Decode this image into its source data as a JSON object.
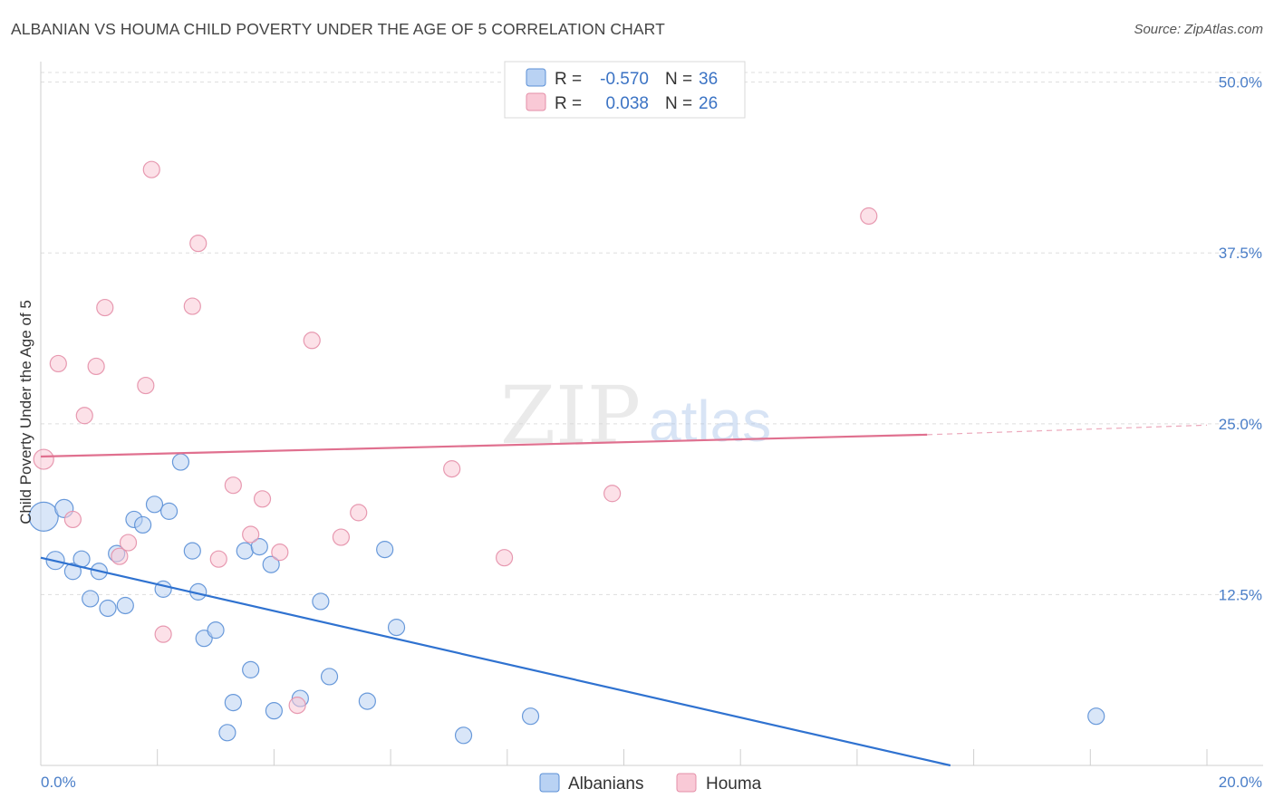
{
  "header": {
    "title": "ALBANIAN VS HOUMA CHILD POVERTY UNDER THE AGE OF 5 CORRELATION CHART",
    "source": "Source: ZipAtlas.com"
  },
  "watermark": {
    "part1": "ZIP",
    "part2": "atlas"
  },
  "colors": {
    "albanians_fill": "#b9d2f3",
    "albanians_stroke": "#5a8fd6",
    "albanians_line": "#2f72d0",
    "houma_fill": "#f9c9d6",
    "houma_stroke": "#e48fa8",
    "houma_line": "#e0708f",
    "axis_label": "#4a7ec8",
    "grid": "#dddddd"
  },
  "legend": {
    "rows": [
      {
        "r_label": "R =",
        "r_value": "-0.570",
        "n_label": "N =",
        "n_value": "36"
      },
      {
        "r_label": "R =",
        "r_value": "0.038",
        "n_label": "N =",
        "n_value": "26"
      }
    ]
  },
  "bottom_legend": [
    "Albanians",
    "Houma"
  ],
  "chart_data": {
    "type": "scatter",
    "title": "ALBANIAN VS HOUMA CHILD POVERTY UNDER THE AGE OF 5 CORRELATION CHART",
    "xlabel": "",
    "ylabel": "Child Poverty Under the Age of 5",
    "xlim": [
      0,
      20
    ],
    "ylim": [
      0,
      51.5
    ],
    "x_tick_labels": [
      "0.0%",
      "20.0%"
    ],
    "y_ticks": [
      12.5,
      25.0,
      37.5,
      50.0
    ],
    "y_tick_labels": [
      "12.5%",
      "25.0%",
      "37.5%",
      "50.0%"
    ],
    "grid": true,
    "legend_position": "top-center",
    "series": [
      {
        "name": "Albanians",
        "r": -0.57,
        "n": 36,
        "points": [
          [
            0.05,
            18.2,
            16
          ],
          [
            0.4,
            18.8,
            10
          ],
          [
            0.25,
            15.0,
            10
          ],
          [
            0.55,
            14.2,
            9
          ],
          [
            0.7,
            15.1,
            9
          ],
          [
            1.0,
            14.2,
            9
          ],
          [
            0.85,
            12.2,
            9
          ],
          [
            1.15,
            11.5,
            9
          ],
          [
            1.45,
            11.7,
            9
          ],
          [
            1.3,
            15.5,
            9
          ],
          [
            1.6,
            18.0,
            9
          ],
          [
            1.75,
            17.6,
            9
          ],
          [
            1.95,
            19.1,
            9
          ],
          [
            2.2,
            18.6,
            9
          ],
          [
            2.4,
            22.2,
            9
          ],
          [
            2.6,
            15.7,
            9
          ],
          [
            2.1,
            12.9,
            9
          ],
          [
            2.7,
            12.7,
            9
          ],
          [
            2.8,
            9.3,
            9
          ],
          [
            3.0,
            9.9,
            9
          ],
          [
            3.5,
            15.7,
            9
          ],
          [
            3.75,
            16.0,
            9
          ],
          [
            3.95,
            14.7,
            9
          ],
          [
            3.6,
            7.0,
            9
          ],
          [
            3.3,
            4.6,
            9
          ],
          [
            4.0,
            4.0,
            9
          ],
          [
            4.45,
            4.9,
            9
          ],
          [
            4.95,
            6.5,
            9
          ],
          [
            4.8,
            12.0,
            9
          ],
          [
            5.6,
            4.7,
            9
          ],
          [
            5.9,
            15.8,
            9
          ],
          [
            6.1,
            10.1,
            9
          ],
          [
            7.25,
            2.2,
            9
          ],
          [
            8.4,
            3.6,
            9
          ],
          [
            3.2,
            2.4,
            9
          ],
          [
            18.1,
            3.6,
            9
          ]
        ],
        "trend": {
          "x": [
            0,
            15.6
          ],
          "y": [
            15.2,
            0
          ]
        }
      },
      {
        "name": "Houma",
        "r": 0.038,
        "n": 26,
        "points": [
          [
            0.05,
            22.4,
            11
          ],
          [
            0.3,
            29.4,
            9
          ],
          [
            0.55,
            18.0,
            9
          ],
          [
            0.75,
            25.6,
            9
          ],
          [
            0.95,
            29.2,
            9
          ],
          [
            1.1,
            33.5,
            9
          ],
          [
            1.35,
            15.3,
            9
          ],
          [
            1.5,
            16.3,
            9
          ],
          [
            1.8,
            27.8,
            9
          ],
          [
            1.9,
            43.6,
            9
          ],
          [
            2.1,
            9.6,
            9
          ],
          [
            2.6,
            33.6,
            9
          ],
          [
            2.7,
            38.2,
            9
          ],
          [
            3.05,
            15.1,
            9
          ],
          [
            3.3,
            20.5,
            9
          ],
          [
            3.6,
            16.9,
            9
          ],
          [
            3.8,
            19.5,
            9
          ],
          [
            4.1,
            15.6,
            9
          ],
          [
            4.4,
            4.4,
            9
          ],
          [
            4.65,
            31.1,
            9
          ],
          [
            5.15,
            16.7,
            9
          ],
          [
            5.45,
            18.5,
            9
          ],
          [
            7.05,
            21.7,
            9
          ],
          [
            7.95,
            15.2,
            9
          ],
          [
            9.8,
            19.9,
            9
          ],
          [
            14.2,
            40.2,
            9
          ]
        ],
        "trend": {
          "x": [
            0,
            15.2
          ],
          "y": [
            22.6,
            24.2
          ]
        },
        "trend_dashed": {
          "x": [
            15.2,
            20
          ],
          "y": [
            24.2,
            24.9
          ]
        }
      }
    ]
  }
}
